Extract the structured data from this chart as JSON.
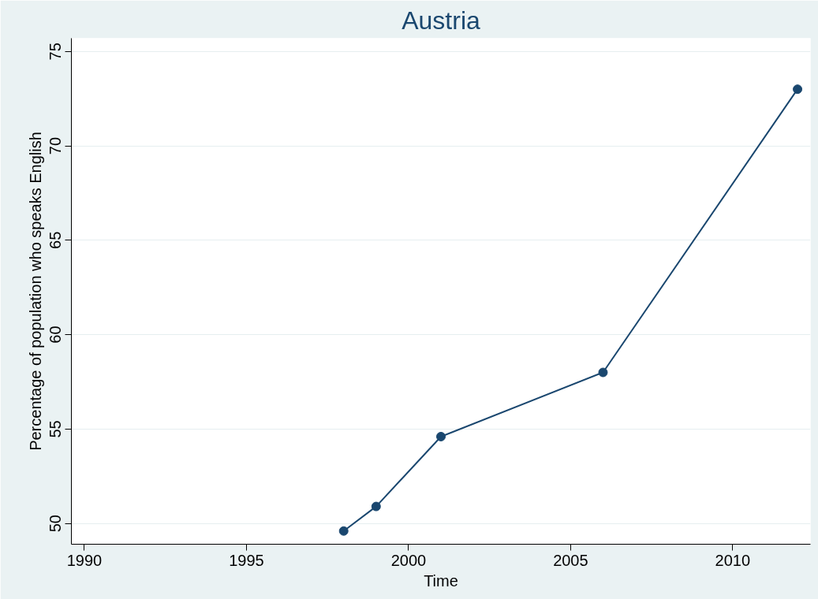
{
  "chart_data": {
    "type": "line",
    "title": "Austria",
    "xlabel": "Time",
    "ylabel": "Percentage of population who speaks English",
    "x": [
      1998,
      1999,
      2001,
      2006,
      2012
    ],
    "series": [
      {
        "color": "#1a476f",
        "values": [
          49.6,
          50.9,
          54.6,
          58.0,
          73.0
        ]
      }
    ],
    "xlim": [
      1989.6,
      2012.4
    ],
    "xticks": [
      1990,
      1995,
      2000,
      2005,
      2010
    ],
    "ylim": [
      48.9,
      75.7
    ],
    "yticks": [
      50,
      55,
      60,
      65,
      70,
      75
    ],
    "grid": "y",
    "marker": "circle",
    "line_style": "solid"
  }
}
